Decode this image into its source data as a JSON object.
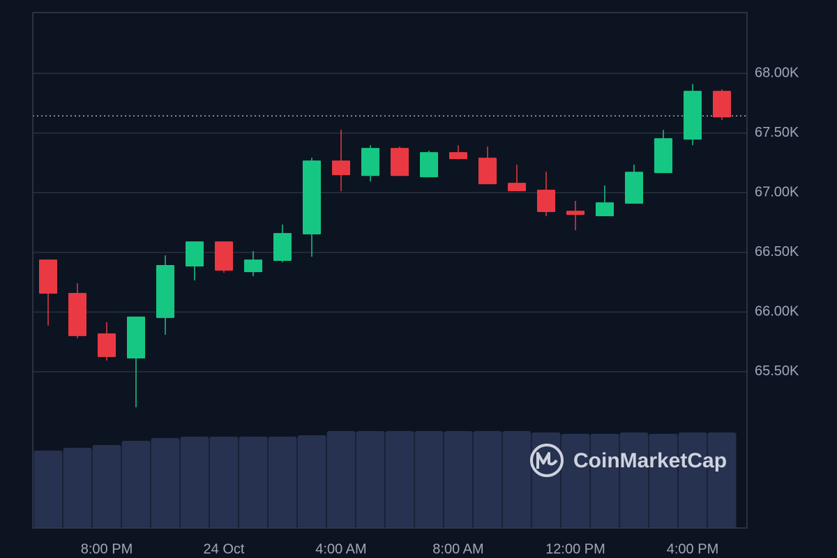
{
  "chart_data": {
    "type": "candlestick",
    "categories": [
      null,
      null,
      "8:00 PM",
      null,
      null,
      null,
      "24 Oct",
      null,
      null,
      null,
      "4:00 AM",
      null,
      null,
      null,
      "8:00 AM",
      null,
      null,
      null,
      "12:00 PM",
      null,
      null,
      null,
      "4:00 PM",
      null
    ],
    "open": [
      66440,
      66160,
      65821,
      65611,
      65950,
      66382,
      66592,
      66335,
      66429,
      66651,
      67270,
      67141,
      67375,
      67130,
      67340,
      67293,
      67083,
      67025,
      66849,
      66803,
      66908,
      67165,
      67445,
      67854
    ],
    "high": [
      66440,
      66242,
      65915,
      65962,
      66475,
      66592,
      66592,
      66511,
      66733,
      67293,
      67527,
      67398,
      67387,
      67352,
      67398,
      67387,
      67235,
      67176,
      66931,
      67060,
      67235,
      67527,
      67912,
      67866
    ],
    "low": [
      65886,
      65780,
      65594,
      65202,
      65810,
      66265,
      66330,
      66300,
      66417,
      66464,
      67013,
      67095,
      67141,
      67130,
      67282,
      67071,
      67013,
      66803,
      66686,
      66803,
      66908,
      67165,
      67398,
      67609
    ],
    "close": [
      66154,
      65798,
      65623,
      65962,
      66394,
      66592,
      66347,
      66440,
      66662,
      67270,
      67147,
      67375,
      67141,
      67340,
      67282,
      67071,
      67013,
      66838,
      66814,
      66919,
      67176,
      67457,
      67854,
      67632
    ],
    "volume": [
      111,
      115,
      119,
      125,
      129,
      131,
      131,
      131,
      131,
      133,
      139,
      139,
      139,
      139,
      139,
      139,
      139,
      137,
      135,
      135,
      137,
      135,
      137,
      137
    ],
    "last_price": 67644,
    "up_color": "#16c784",
    "down_color": "#ea3943",
    "volume_color": "#273150",
    "ylim": [
      64190,
      68510
    ],
    "yticks": [
      {
        "value": 65500,
        "label": "65.50K"
      },
      {
        "value": 66000,
        "label": "66.00K"
      },
      {
        "value": 66500,
        "label": "66.50K"
      },
      {
        "value": 67000,
        "label": "67.00K"
      },
      {
        "value": 67500,
        "label": "67.50K"
      },
      {
        "value": 68000,
        "label": "68.00K"
      }
    ],
    "grid": true,
    "watermark": "CoinMarketCap"
  }
}
